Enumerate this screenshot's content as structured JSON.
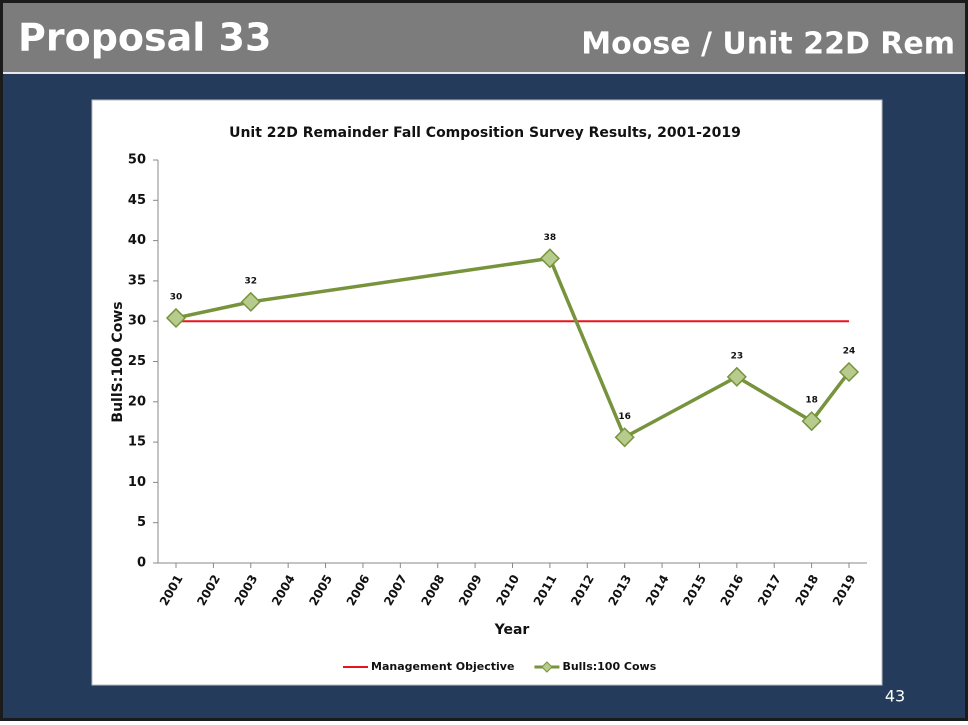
{
  "slide": {
    "title": "Proposal 33",
    "subtitle": "Moose / Unit 22D Rem",
    "page_number": "43"
  },
  "chart_data": {
    "type": "line",
    "title": "Unit 22D Remainder Fall Composition Survey Results, 2001-2019",
    "x_label": "Year",
    "y_label": "BullS:100 Cows",
    "xlim": [
      2001,
      2019
    ],
    "xticks": [
      2001,
      2002,
      2003,
      2004,
      2005,
      2006,
      2007,
      2008,
      2009,
      2010,
      2011,
      2012,
      2013,
      2014,
      2015,
      2016,
      2017,
      2018,
      2019
    ],
    "ylim": [
      0,
      50
    ],
    "yticks": [
      0,
      5,
      10,
      15,
      20,
      25,
      30,
      35,
      40,
      45,
      50
    ],
    "legend": "bottom",
    "series": [
      {
        "name": "Management Objective",
        "color": "#e8141b",
        "x": [
          2001,
          2019
        ],
        "values": [
          30,
          30
        ]
      },
      {
        "name": "Bulls:100 Cows",
        "color": "#77933c",
        "marker_fill": "#b7cc8c",
        "x": [
          2001,
          2003,
          2011,
          2013,
          2016,
          2018,
          2019
        ],
        "values": [
          30.4,
          32.4,
          37.8,
          15.6,
          23.1,
          17.6,
          23.7
        ],
        "value_labels": [
          "30",
          "32",
          "38",
          "16",
          "23",
          "18",
          "24"
        ]
      }
    ]
  }
}
